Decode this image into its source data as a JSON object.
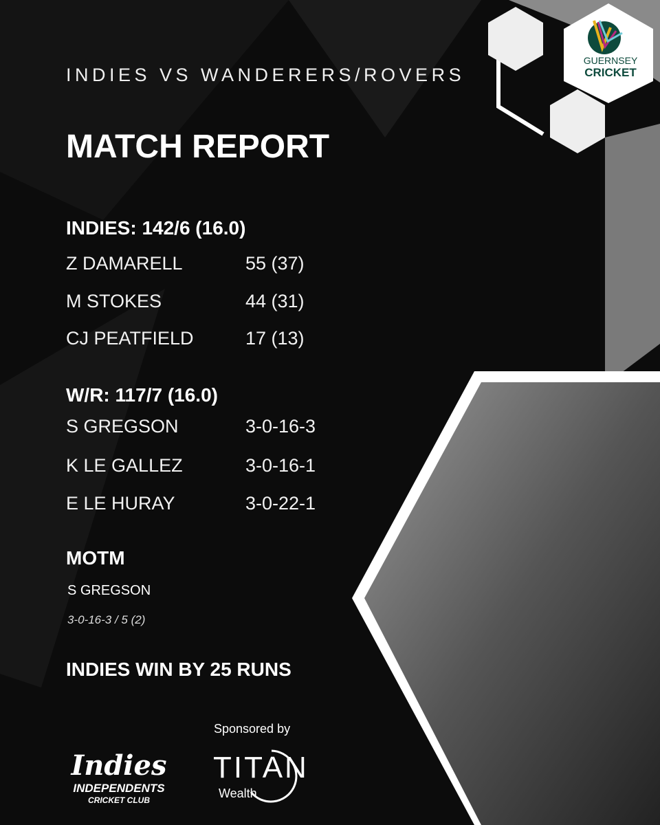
{
  "header": {
    "subtitle": "INDIES VS WANDERERS/ROVERS",
    "title": "MATCH REPORT"
  },
  "innings1": {
    "heading": "INDIES: 142/6 (16.0)",
    "rows": [
      {
        "name": "Z DAMARELL",
        "value": "55 (37)"
      },
      {
        "name": "M STOKES",
        "value": "44 (31)"
      },
      {
        "name": "CJ PEATFIELD",
        "value": "17 (13)"
      }
    ]
  },
  "innings2": {
    "heading": "W/R: 117/7 (16.0)",
    "rows": [
      {
        "name": "S GREGSON",
        "value": "3-0-16-3"
      },
      {
        "name": "K LE GALLEZ",
        "value": "3-0-16-1"
      },
      {
        "name": "E LE HURAY",
        "value": "3-0-22-1"
      }
    ]
  },
  "motm": {
    "heading": "MOTM",
    "name": "S GREGSON",
    "figures": "3-0-16-3 / 5 (2)"
  },
  "result": "INDIES WIN BY 25 RUNS",
  "logos": {
    "guernsey": {
      "line1": "GUERNSEY",
      "line2": "CRICKET",
      "colors": [
        "#0d4a3c",
        "#e8b21c",
        "#b7267f",
        "#6fcbd8"
      ]
    },
    "indies": {
      "script": "Indies",
      "line1": "INDEPENDENTS",
      "line2": "CRICKET CLUB"
    },
    "sponsor": {
      "label": "Sponsored by",
      "name": "TITAN",
      "sub": "Wealth"
    }
  },
  "colors": {
    "background": "#0c0c0c",
    "text": "#ffffff"
  }
}
